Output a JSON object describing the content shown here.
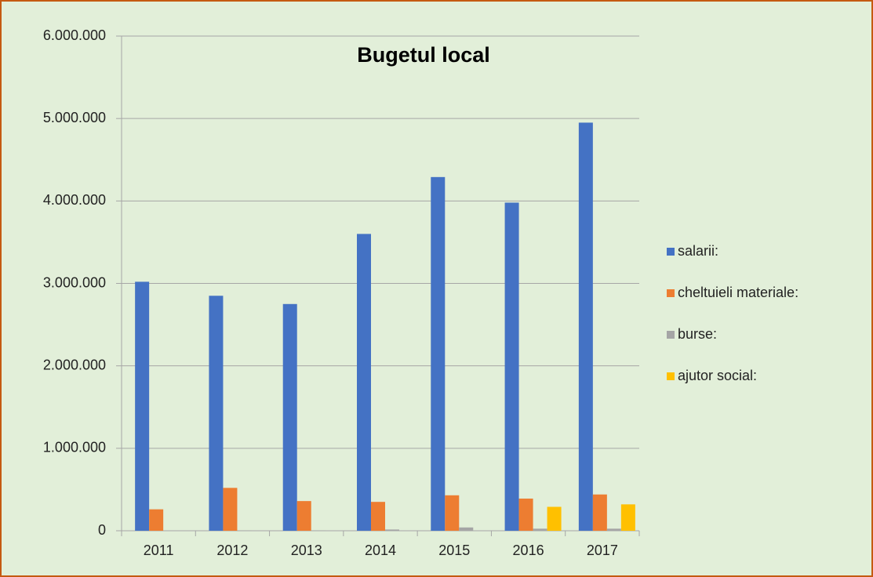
{
  "chart_data": {
    "type": "bar",
    "title": "Bugetul local",
    "categories": [
      "2011",
      "2012",
      "2013",
      "2014",
      "2015",
      "2016",
      "2017"
    ],
    "series": [
      {
        "name": "salarii:",
        "color": "#4472c4",
        "values": [
          3020000,
          2850000,
          2750000,
          3600000,
          4290000,
          3980000,
          4950000
        ]
      },
      {
        "name": "cheltuieli materiale:",
        "color": "#ed7d31",
        "values": [
          260000,
          520000,
          360000,
          350000,
          430000,
          390000,
          440000
        ]
      },
      {
        "name": "burse:",
        "color": "#a5a5a5",
        "values": [
          0,
          5000,
          5000,
          15000,
          40000,
          25000,
          25000
        ]
      },
      {
        "name": "ajutor social:",
        "color": "#ffc000",
        "values": [
          0,
          0,
          0,
          0,
          0,
          290000,
          320000
        ]
      }
    ],
    "ylim": [
      0,
      6000000
    ],
    "yticks": [
      {
        "value": 0,
        "label": "0"
      },
      {
        "value": 1000000,
        "label": "1.000.000"
      },
      {
        "value": 2000000,
        "label": "2.000.000"
      },
      {
        "value": 3000000,
        "label": "3.000.000"
      },
      {
        "value": 4000000,
        "label": "4.000.000"
      },
      {
        "value": 5000000,
        "label": "5.000.000"
      },
      {
        "value": 6000000,
        "label": "6.000.000"
      }
    ],
    "grid": true,
    "legend": "right"
  }
}
